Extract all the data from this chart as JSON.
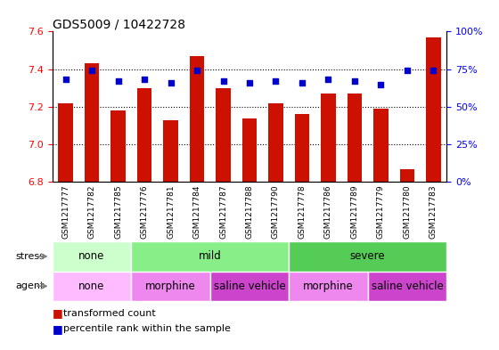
{
  "title": "GDS5009 / 10422728",
  "samples": [
    "GSM1217777",
    "GSM1217782",
    "GSM1217785",
    "GSM1217776",
    "GSM1217781",
    "GSM1217784",
    "GSM1217787",
    "GSM1217788",
    "GSM1217790",
    "GSM1217778",
    "GSM1217786",
    "GSM1217789",
    "GSM1217779",
    "GSM1217780",
    "GSM1217783"
  ],
  "transformed_counts": [
    7.22,
    7.43,
    7.18,
    7.3,
    7.13,
    7.47,
    7.3,
    7.14,
    7.22,
    7.16,
    7.27,
    7.27,
    7.19,
    6.87,
    7.57
  ],
  "percentile_ranks": [
    68,
    74,
    67,
    68,
    66,
    74,
    67,
    66,
    67,
    66,
    68,
    67,
    65,
    74,
    74
  ],
  "ylim_left": [
    6.8,
    7.6
  ],
  "ylim_right": [
    0,
    100
  ],
  "bar_color": "#cc1100",
  "dot_color": "#0000cc",
  "stress_groups": [
    {
      "label": "none",
      "start": 0,
      "end": 3,
      "color": "#ccffcc"
    },
    {
      "label": "mild",
      "start": 3,
      "end": 9,
      "color": "#88ee88"
    },
    {
      "label": "severe",
      "start": 9,
      "end": 15,
      "color": "#55cc55"
    }
  ],
  "agent_groups": [
    {
      "label": "none",
      "start": 0,
      "end": 3,
      "color": "#ffbbff"
    },
    {
      "label": "morphine",
      "start": 3,
      "end": 6,
      "color": "#ee88ee"
    },
    {
      "label": "saline vehicle",
      "start": 6,
      "end": 9,
      "color": "#cc44cc"
    },
    {
      "label": "morphine",
      "start": 9,
      "end": 12,
      "color": "#ee88ee"
    },
    {
      "label": "saline vehicle",
      "start": 12,
      "end": 15,
      "color": "#cc44cc"
    }
  ],
  "grid_values": [
    7.0,
    7.2,
    7.4
  ],
  "left_ticks": [
    6.8,
    7.0,
    7.2,
    7.4,
    7.6
  ],
  "right_ticks": [
    0,
    25,
    50,
    75,
    100
  ],
  "right_tick_labels": [
    "0%",
    "25%",
    "50%",
    "75%",
    "100%"
  ],
  "ylabel_left_color": "red",
  "ylabel_right_color": "blue"
}
